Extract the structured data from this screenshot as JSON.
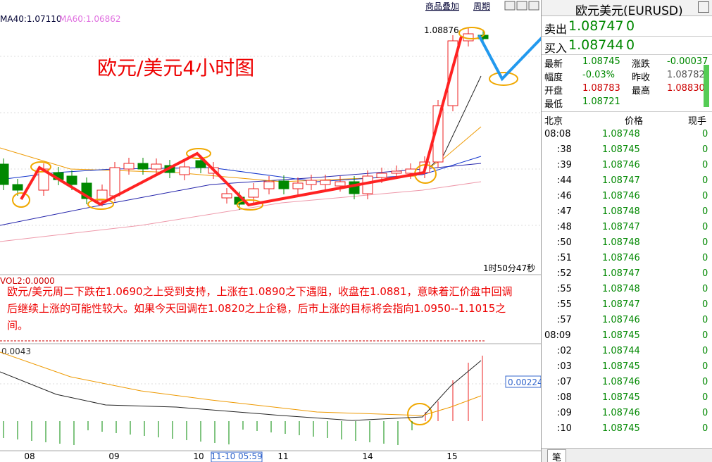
{
  "toolbar": {
    "overlay": "商品叠加",
    "period": "周期"
  },
  "chart": {
    "ma40": "MA40:1.07110",
    "ma60": "MA60:1.06862",
    "price_tag": "1.08876",
    "title": "欧元/美元4小时图",
    "countdown": "1时50分47秒",
    "vol_label": "VOL2:0.0000",
    "commentary": "欧元/美元周二下跌在1.0690之上受到支持，上涨在1.0890之下遇阻，收盘在1.0881，意味着汇价盘中回调后继续上涨的可能性较大。如果今天回调在1.0820之上企稳，后市上涨的目标将会指向1.0950--1.1015之间。",
    "indicator_top": "0.0043",
    "indicator_value": "0.00224",
    "x_labels": [
      "08",
      "09",
      "10",
      "11-10 05:59",
      "11",
      "14",
      "15"
    ]
  },
  "quote": {
    "title": "欧元美元(EURUSD)",
    "sell": {
      "label": "卖出",
      "price": "1.08747",
      "qty": "0"
    },
    "buy": {
      "label": "买入",
      "price": "1.08744",
      "qty": "0"
    },
    "stats": [
      [
        "最新",
        "1.08745",
        "涨跌",
        "-0.00037"
      ],
      [
        "幅度",
        "-0.03%",
        "昨收",
        "1.08782"
      ],
      [
        "开盘",
        "1.08783",
        "最高",
        "1.08830"
      ],
      [
        "最低",
        "1.08721"
      ]
    ],
    "header": [
      "北京",
      "价格",
      "现手"
    ],
    "ticks": [
      [
        "08:08",
        "1.08748",
        "0"
      ],
      [
        ":38",
        "1.08745",
        "0"
      ],
      [
        ":39",
        "1.08746",
        "0"
      ],
      [
        ":44",
        "1.08747",
        "0"
      ],
      [
        ":46",
        "1.08746",
        "0"
      ],
      [
        ":47",
        "1.08748",
        "0"
      ],
      [
        ":48",
        "1.08747",
        "0"
      ],
      [
        ":50",
        "1.08748",
        "0"
      ],
      [
        ":51",
        "1.08746",
        "0"
      ],
      [
        ":52",
        "1.08747",
        "0"
      ],
      [
        ":55",
        "1.08748",
        "0"
      ],
      [
        ":55",
        "1.08747",
        "0"
      ],
      [
        ":57",
        "1.08746",
        "0"
      ],
      [
        "08:09",
        "1.08745",
        "0"
      ],
      [
        ":02",
        "1.08744",
        "0"
      ],
      [
        ":03",
        "1.08745",
        "0"
      ],
      [
        ":07",
        "1.08746",
        "0"
      ],
      [
        ":08",
        "1.08745",
        "0"
      ],
      [
        ":09",
        "1.08746",
        "0"
      ],
      [
        ":10",
        "1.08745",
        "0"
      ]
    ],
    "tab": "笔"
  }
}
